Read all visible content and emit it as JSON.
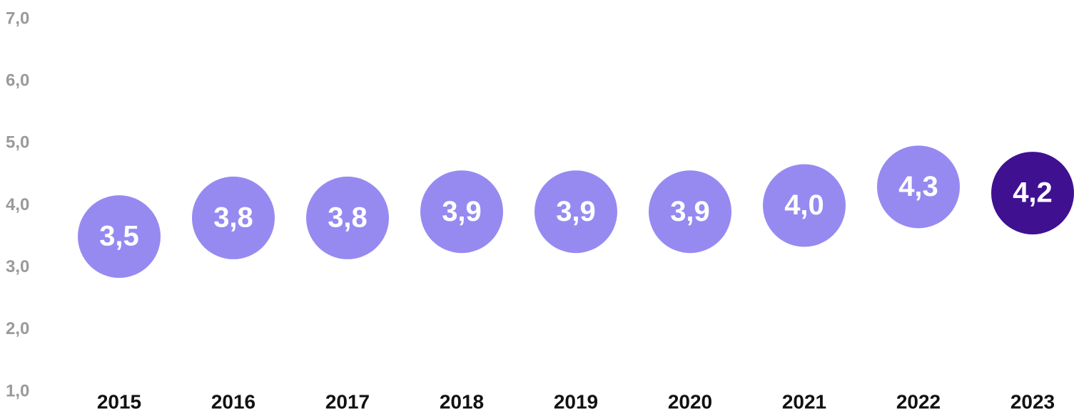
{
  "chart_data": {
    "type": "dot",
    "categories": [
      "2015",
      "2016",
      "2017",
      "2018",
      "2019",
      "2020",
      "2021",
      "2022",
      "2023"
    ],
    "values": [
      3.5,
      3.8,
      3.8,
      3.9,
      3.9,
      3.9,
      4.0,
      4.3,
      4.2
    ],
    "value_labels": [
      "3,5",
      "3,8",
      "3,8",
      "3,9",
      "3,9",
      "3,9",
      "4,0",
      "4,3",
      "4,2"
    ],
    "colors": [
      "#968af1",
      "#968af1",
      "#968af1",
      "#968af1",
      "#968af1",
      "#968af1",
      "#968af1",
      "#968af1",
      "#3f1191"
    ],
    "ylim": [
      1,
      7
    ],
    "yticks": [
      {
        "value": 1,
        "label": "1,0"
      },
      {
        "value": 2,
        "label": "2,0"
      },
      {
        "value": 3,
        "label": "3,0"
      },
      {
        "value": 4,
        "label": "4,0"
      },
      {
        "value": 5,
        "label": "5,0"
      },
      {
        "value": 6,
        "label": "6,0"
      },
      {
        "value": 7,
        "label": "7,0"
      }
    ],
    "grid": false
  }
}
